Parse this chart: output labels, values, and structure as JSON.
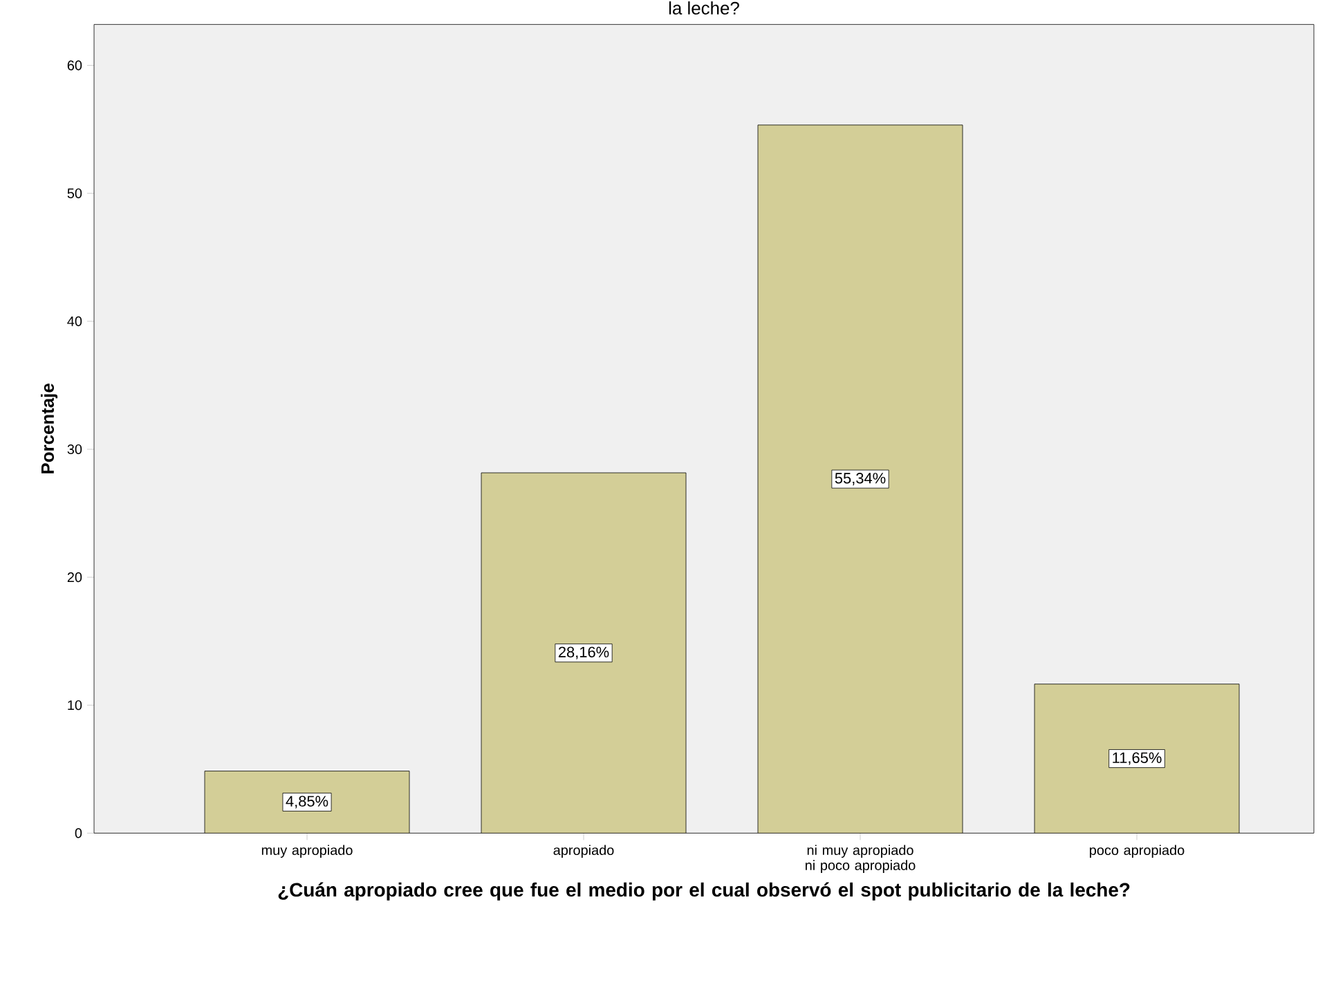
{
  "chart_data": {
    "type": "bar",
    "title": "la leche?",
    "xlabel": "¿Cuán apropiado cree que fue el medio por el cual observó el spot publicitario de la leche?",
    "ylabel": "Porcentaje",
    "categories": [
      "muy apropiado",
      "apropiado",
      "ni muy apropiado ni poco apropiado",
      "poco apropiado"
    ],
    "values": [
      4.85,
      28.16,
      55.34,
      11.65
    ],
    "value_labels": [
      "4,85%",
      "28,16%",
      "55,34%",
      "11,65%"
    ],
    "color": "#d3ce97",
    "ylim": [
      0,
      63.2
    ],
    "yticks": [
      0,
      10,
      20,
      30,
      40,
      50,
      60
    ],
    "grid": false
  }
}
